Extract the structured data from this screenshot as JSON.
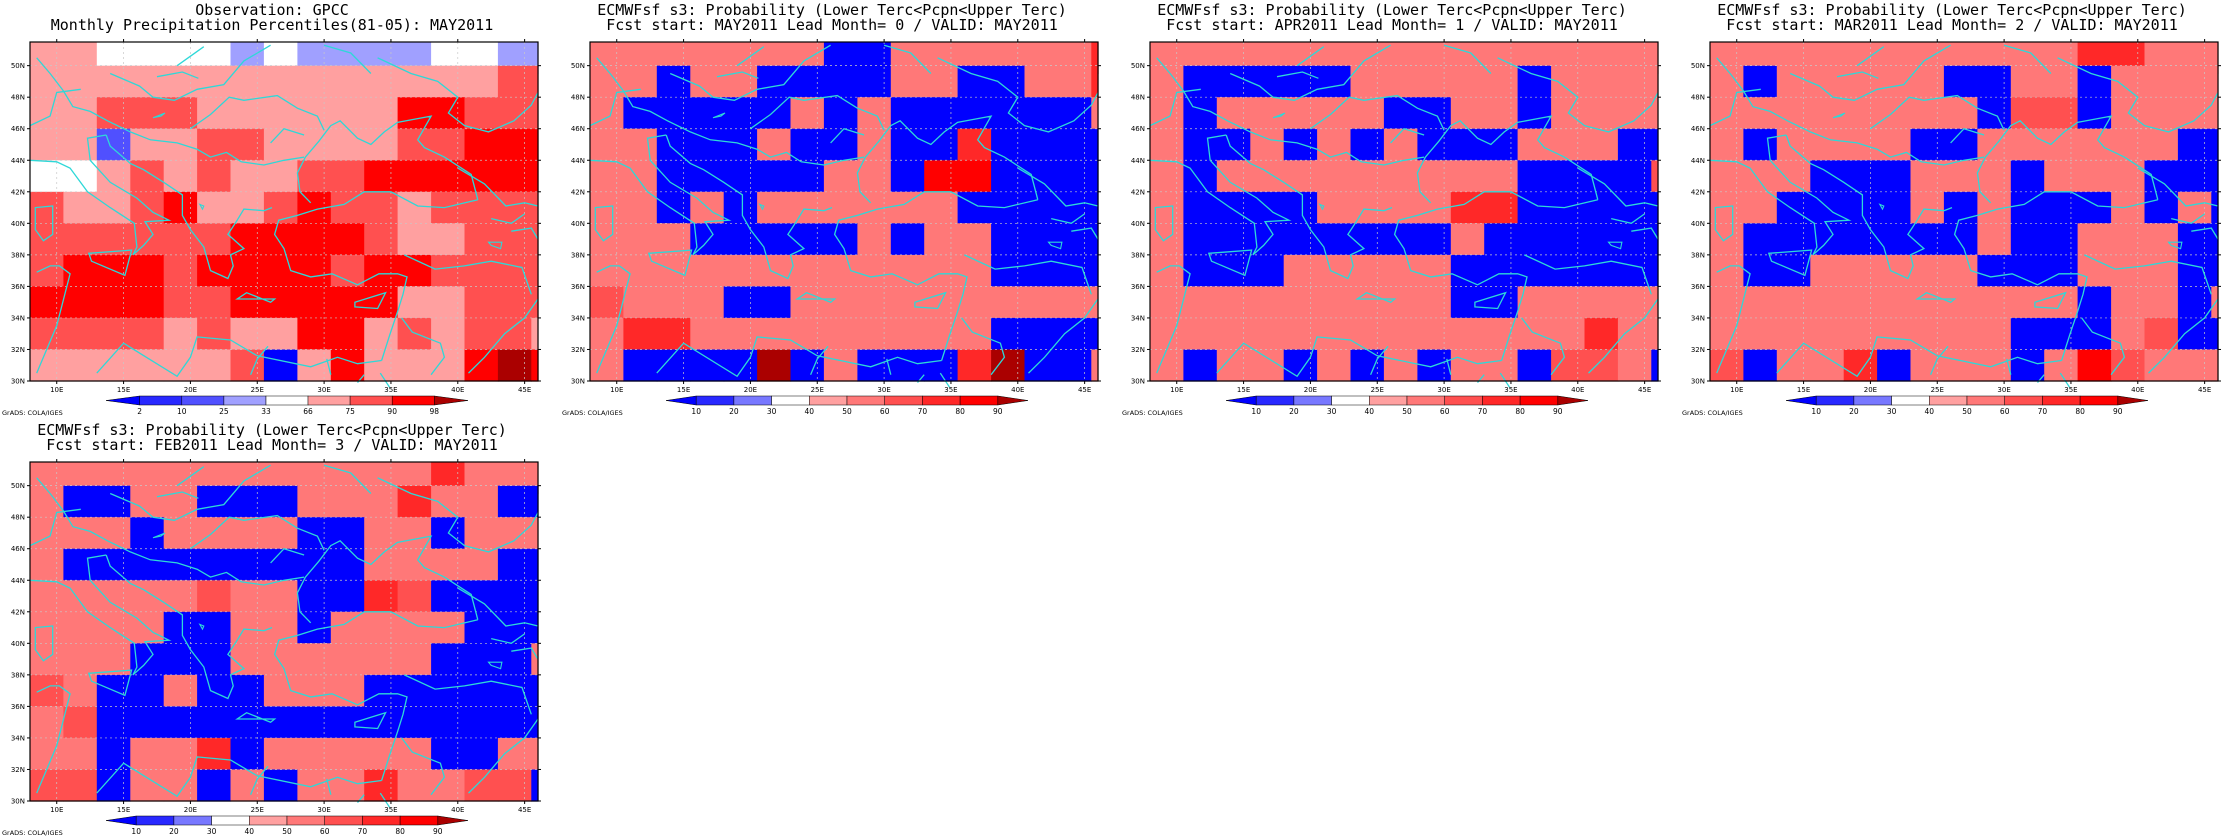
{
  "colors": {
    "ramp": [
      "#0000ff",
      "#2828ff",
      "#5050ff",
      "#7878ff",
      "#a0a0ff",
      "#ffffff",
      "#ffa0a0",
      "#ff7878",
      "#ff5050",
      "#ff2828",
      "#ff0000",
      "#aa0000"
    ],
    "coast": "#2ed8d8",
    "grid": "#c8c8c8"
  },
  "credit": "GrADS: COLA/IGES",
  "panels": [
    {
      "title": "Observation: GPCC",
      "subtitle": "Monthly Precipitation Percentiles(81-05): MAY2011",
      "colorbar_labels": [
        "2",
        "10",
        "25",
        "33",
        "66",
        "75",
        "90",
        "98"
      ],
      "xticks": [
        "10E",
        "15E",
        "20E",
        "25E",
        "30E",
        "35E",
        "40E",
        "45E"
      ],
      "yticks": [
        "30N",
        "32N",
        "34N",
        "36N",
        "38N",
        "40N",
        "42N",
        "44N",
        "46N",
        "48N",
        "50N"
      ]
    },
    {
      "title": "ECMWFsf s3: Probability (Lower Terc<Pcpn<Upper Terc)",
      "subtitle": "Fcst start: MAY2011  Lead Month= 0 / VALID: MAY2011",
      "colorbar_labels": [
        "10",
        "20",
        "30",
        "40",
        "50",
        "60",
        "70",
        "80",
        "90"
      ],
      "xticks": [
        "10E",
        "15E",
        "20E",
        "25E",
        "30E",
        "35E",
        "40E",
        "45E"
      ],
      "yticks": [
        "30N",
        "32N",
        "34N",
        "36N",
        "38N",
        "40N",
        "42N",
        "44N",
        "46N",
        "48N",
        "50N"
      ]
    },
    {
      "title": "ECMWFsf s3: Probability (Lower Terc<Pcpn<Upper Terc)",
      "subtitle": "Fcst start: APR2011  Lead Month= 1 / VALID: MAY2011",
      "colorbar_labels": [
        "10",
        "20",
        "30",
        "40",
        "50",
        "60",
        "70",
        "80",
        "90"
      ],
      "xticks": [
        "10E",
        "15E",
        "20E",
        "25E",
        "30E",
        "35E",
        "40E",
        "45E"
      ],
      "yticks": [
        "30N",
        "32N",
        "34N",
        "36N",
        "38N",
        "40N",
        "42N",
        "44N",
        "46N",
        "48N",
        "50N"
      ]
    },
    {
      "title": "ECMWFsf s3: Probability (Lower Terc<Pcpn<Upper Terc)",
      "subtitle": "Fcst start: MAR2011  Lead Month= 2 / VALID: MAY2011",
      "colorbar_labels": [
        "10",
        "20",
        "30",
        "40",
        "50",
        "60",
        "70",
        "80",
        "90"
      ],
      "xticks": [
        "10E",
        "15E",
        "20E",
        "25E",
        "30E",
        "35E",
        "40E",
        "45E"
      ],
      "yticks": [
        "30N",
        "32N",
        "34N",
        "36N",
        "38N",
        "40N",
        "42N",
        "44N",
        "46N",
        "48N",
        "50N"
      ]
    },
    {
      "title": "ECMWFsf s3: Probability (Lower Terc<Pcpn<Upper Terc)",
      "subtitle": "Fcst start: FEB2011  Lead Month= 3 / VALID: MAY2011",
      "colorbar_labels": [
        "10",
        "20",
        "30",
        "40",
        "50",
        "60",
        "70",
        "80",
        "90"
      ],
      "xticks": [
        "10E",
        "15E",
        "20E",
        "25E",
        "30E",
        "35E",
        "40E",
        "45E"
      ],
      "yticks": [
        "30N",
        "32N",
        "34N",
        "36N",
        "38N",
        "40N",
        "42N",
        "44N",
        "46N",
        "48N",
        "50N"
      ]
    }
  ],
  "chart_data": [
    {
      "type": "heatmap",
      "lon_range": [
        8,
        46
      ],
      "lat_range": [
        30,
        51.5
      ],
      "cell_size_deg": 2.5,
      "color_classes": [
        "<2",
        "2-10",
        "10-25",
        "25-33",
        "33-66",
        "66-75",
        "75-90",
        "90-98",
        ">98"
      ],
      "rows": [
        "5544443433334433",
        "5555555555555566",
        "5566655555577666",
        "5525566555566777",
        "4456565566777777",
        "6556755676656666",
        "6666667777655666",
        "6777677776776666",
        "7777667777755666",
        "6666565577565665",
        "5555556057555787"
      ]
    },
    {
      "type": "heatmap",
      "lon_range": [
        8,
        46
      ],
      "lat_range": [
        30,
        51.5
      ],
      "cell_size_deg": 2.5,
      "color_classes": [
        "<10",
        "10-20",
        "20-30",
        "30-40",
        "40-50",
        "50-60",
        "60-70",
        "70-80",
        "80-90",
        ">90"
      ],
      "rows": [
        "5555555005555557",
        "5505500005500557",
        "5000005050000005",
        "5500050050070000",
        "5500000550880000",
        "5505055555500000",
        "5550000050550000",
        "5555555555550000",
        "6555005555555555",
        "5775555555550000",
        "5000090500079005"
      ]
    },
    {
      "type": "heatmap",
      "lon_range": [
        8,
        46
      ],
      "lat_range": [
        30,
        51.5
      ],
      "cell_size_deg": 2.5,
      "color_classes": [
        "<10",
        "10-20",
        "20-30",
        "30-40",
        "40-50",
        "50-60",
        "60-70",
        "70-80",
        "80-90",
        ">90"
      ],
      "rows": [
        "5555555555555555",
        "5000005555505555",
        "5055555005505555",
        "5005050500055500",
        "5055555555500006",
        "5000055557700000",
        "5000000005000000",
        "5000555550000000",
        "5555555550055555",
        "5555555555555755",
        "5055050505506650"
      ]
    },
    {
      "type": "heatmap",
      "lon_range": [
        8,
        46
      ],
      "lat_range": [
        30,
        51.5
      ],
      "cell_size_deg": 2.5,
      "color_classes": [
        "<10",
        "10-20",
        "20-30",
        "30-40",
        "40-50",
        "50-60",
        "60-70",
        "70-80",
        "80-90",
        ">90"
      ],
      "rows": [
        "5555555555577555",
        "5055555005505555",
        "5555555506605555",
        "5055550055555500",
        "5550005550555000",
        "5500005050005050",
        "5000000050055500",
        "5005555500055500",
        "5555555555505505",
        "5555555550005600",
        "6055705550586555"
      ]
    },
    {
      "type": "heatmap",
      "lon_range": [
        8,
        46
      ],
      "lat_range": [
        30,
        51.5
      ],
      "cell_size_deg": 2.5,
      "color_classes": [
        "<10",
        "10-20",
        "20-30",
        "30-40",
        "40-50",
        "50-60",
        "60-70",
        "70-80",
        "80-90",
        ">90"
      ],
      "rows": [
        "5555555555557555",
        "5005500055575500",
        "5550555500550555",
        "5000000000555500",
        "5555565500760000",
        "5555005505555000",
        "5550005555550005",
        "6500500555000000",
        "5600000000000000",
        "5505570555550055",
        "6605505055755660"
      ]
    }
  ]
}
